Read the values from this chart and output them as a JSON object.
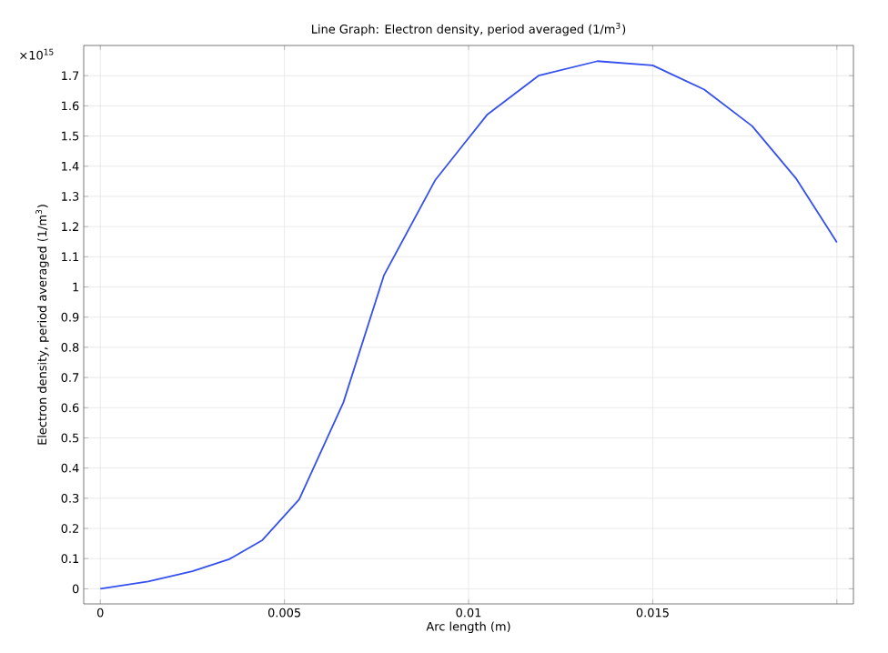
{
  "chart_data": {
    "type": "line",
    "title": "Line Graph: Electron density, period averaged (1/m$^{3}$)",
    "xlabel": "Arc length (m)",
    "ylabel": "Electron density, period averaged (1/m$^{3}$)",
    "annotations": [
      "×10$^{15}$"
    ],
    "x": [
      0,
      0.0013,
      0.0025,
      0.0035,
      0.0044,
      0.0054,
      0.0066,
      0.0077,
      0.0091,
      0.0105,
      0.0119,
      0.0135,
      0.015,
      0.0164,
      0.0177,
      0.0189,
      0.02
    ],
    "series": [
      {
        "color": "#3550ee",
        "values": [
          0,
          0.024,
          0.058,
          0.098,
          0.161,
          0.296,
          0.617,
          1.038,
          1.355,
          1.57,
          1.7,
          1.748,
          1.734,
          1.654,
          1.533,
          1.358,
          1.148
        ]
      }
    ],
    "xlim": [
      -0.00045,
      0.02045
    ],
    "ylim": [
      -0.05,
      1.8
    ],
    "xticks": [
      0,
      0.005,
      0.01,
      0.015,
      {
        "value": 0.02,
        "label": null
      }
    ],
    "yticks": [
      0,
      0.1,
      0.2,
      0.3,
      0.4,
      0.5,
      0.6,
      0.7,
      0.8,
      0.9,
      1,
      1.1,
      1.2,
      1.3,
      1.4,
      1.5,
      1.6,
      1.7
    ],
    "grid": true,
    "marker": "none",
    "line_style": "solid"
  }
}
